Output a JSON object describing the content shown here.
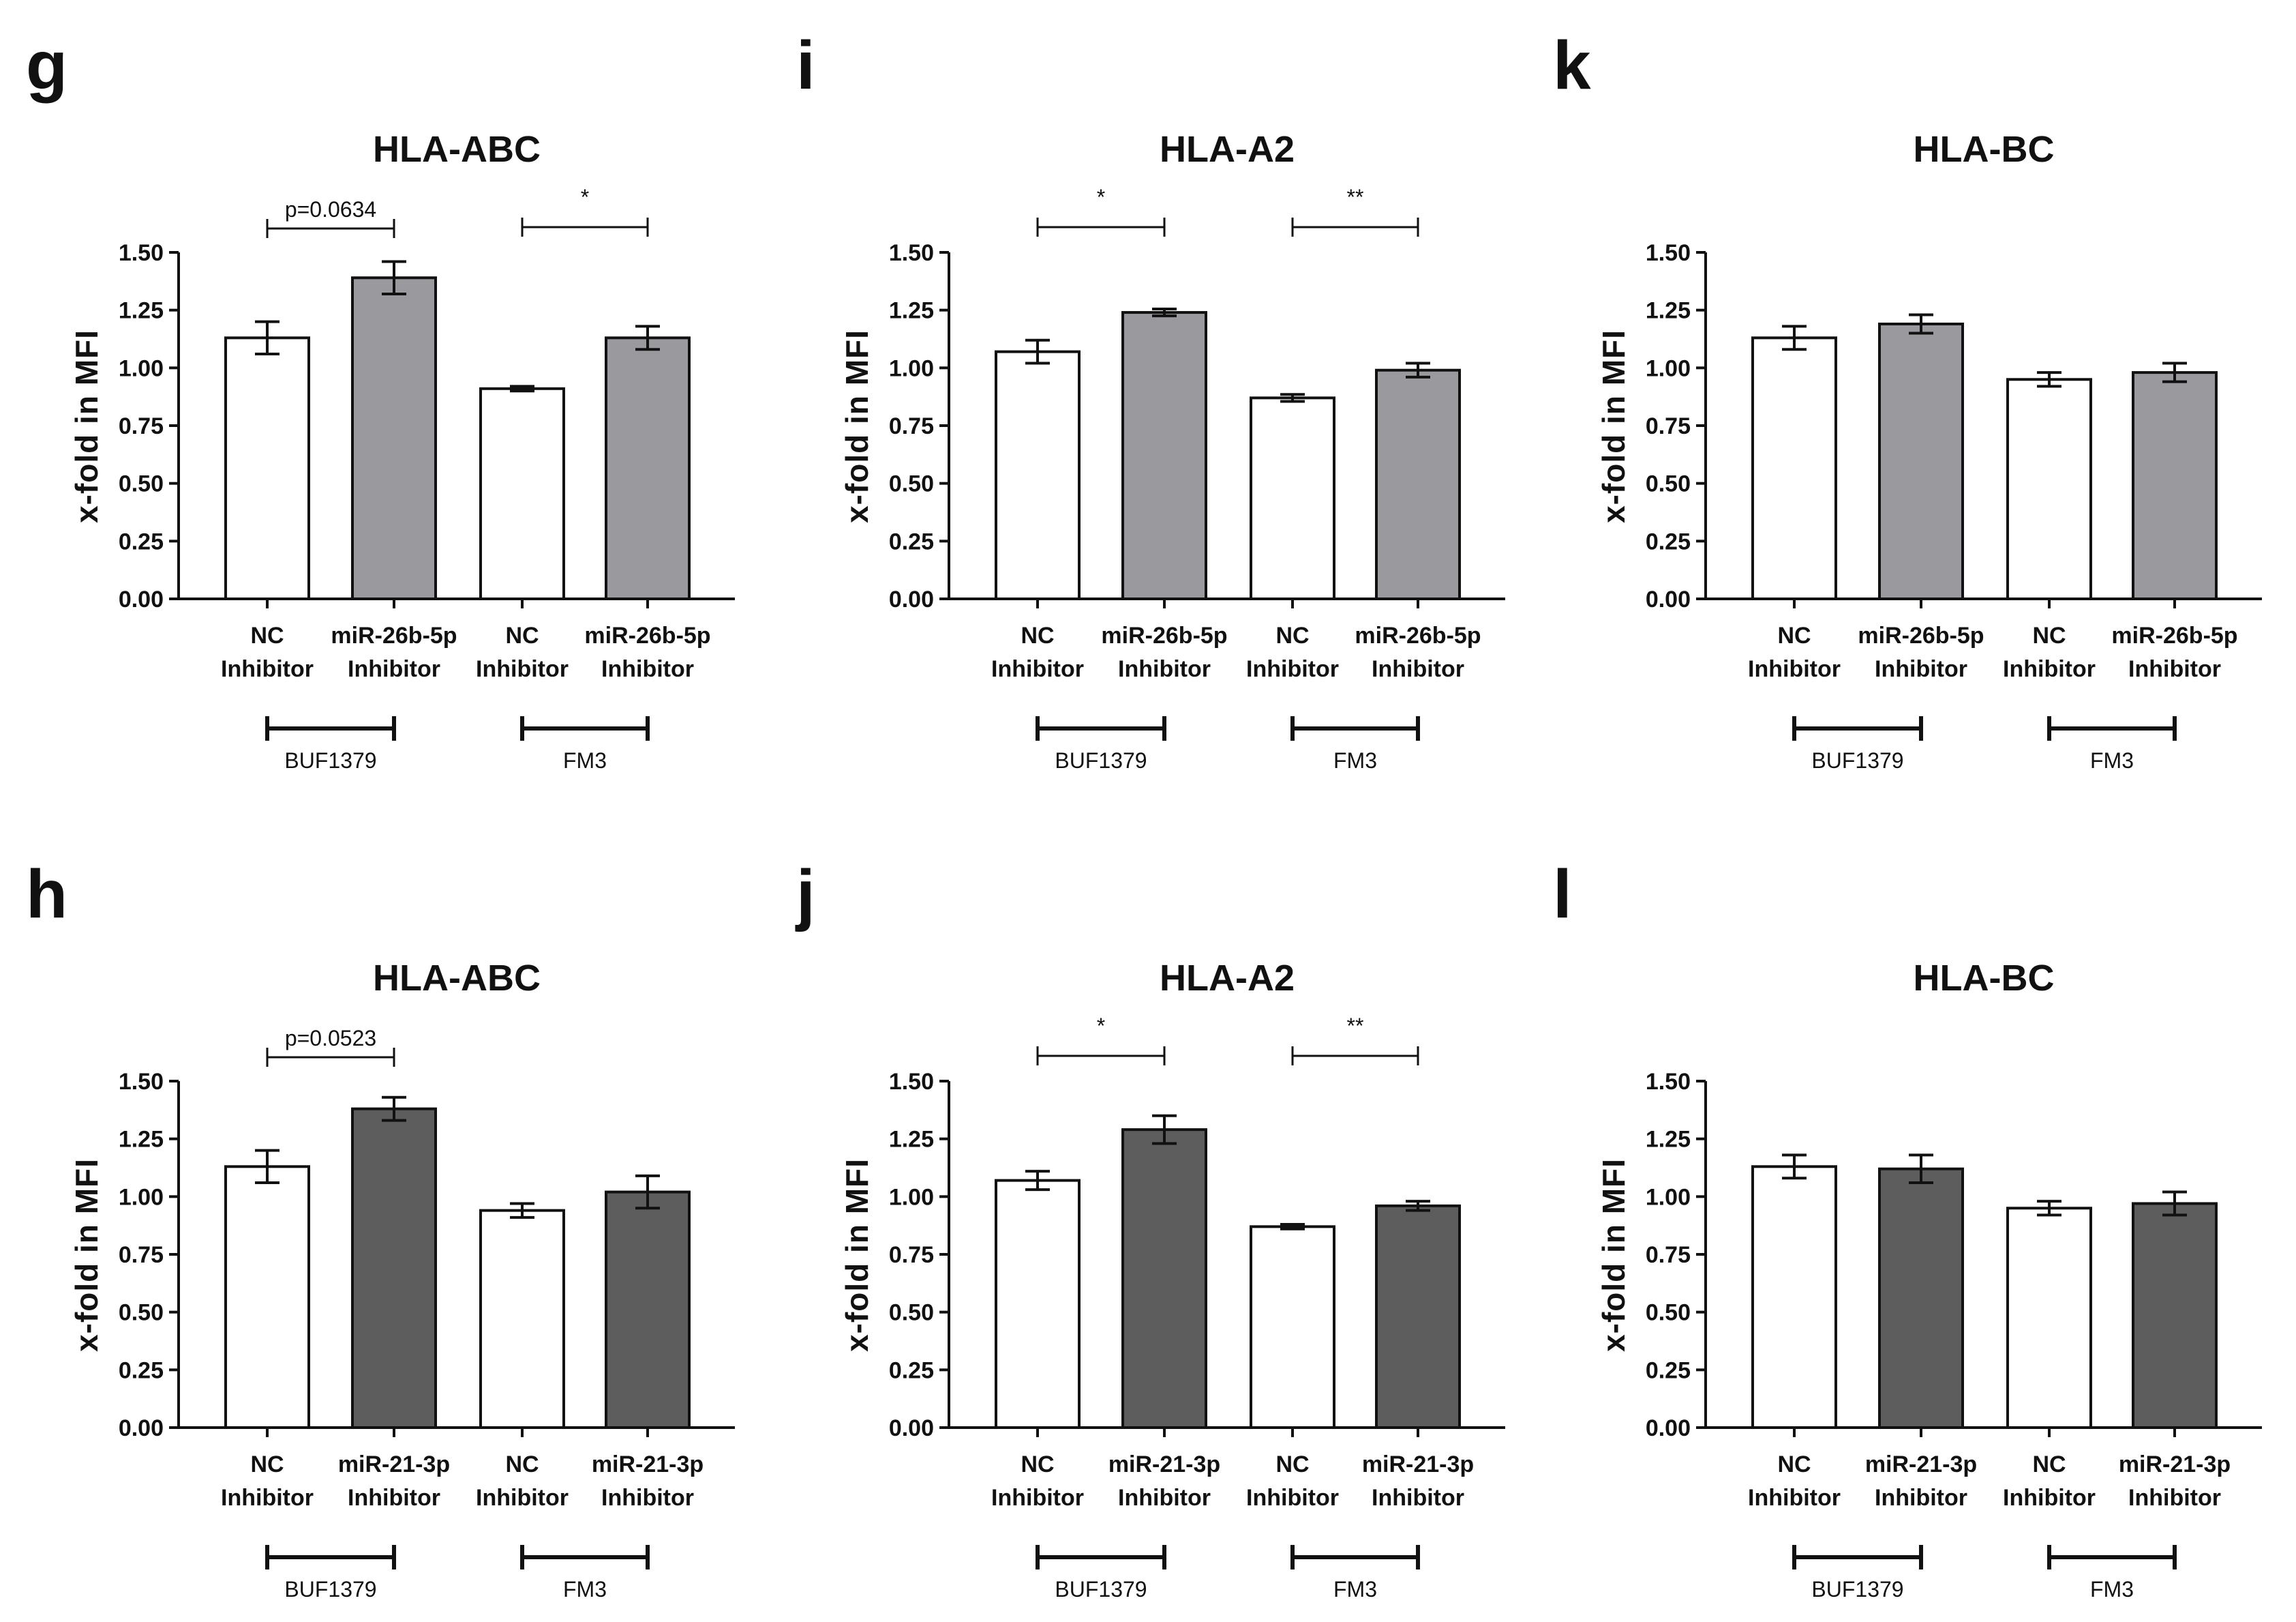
{
  "figure": {
    "colors": {
      "nc": "#ffffff",
      "mir26b": "#9a9a9e",
      "mir21": "#5d5d5d",
      "stroke": "#111111"
    }
  },
  "chart_data": [
    {
      "panel": "g",
      "type": "bar",
      "title": "HLA-ABC",
      "ylabel": "x-fold in MFI",
      "ylim": [
        0,
        1.5
      ],
      "yticks": [
        "0.00",
        "0.25",
        "0.50",
        "0.75",
        "1.00",
        "1.25",
        "1.50"
      ],
      "categories": [
        [
          "NC",
          "Inhibitor"
        ],
        [
          "miR-26b-5p",
          "Inhibitor"
        ],
        [
          "NC",
          "Inhibitor"
        ],
        [
          "miR-26b-5p",
          "Inhibitor"
        ]
      ],
      "values": [
        1.13,
        1.39,
        0.91,
        1.13
      ],
      "errors": [
        0.07,
        0.07,
        0.01,
        0.05
      ],
      "fills": [
        "nc",
        "mir26b",
        "nc",
        "mir26b"
      ],
      "groups": [
        "BUF1379",
        "FM3"
      ],
      "annotations": [
        {
          "pair": [
            0,
            1
          ],
          "text": "p=0.0634"
        },
        {
          "pair": [
            2,
            3
          ],
          "text": "*"
        }
      ]
    },
    {
      "panel": "i",
      "type": "bar",
      "title": "HLA-A2",
      "ylabel": "x-fold in MFI",
      "ylim": [
        0,
        1.5
      ],
      "yticks": [
        "0.00",
        "0.25",
        "0.50",
        "0.75",
        "1.00",
        "1.25",
        "1.50"
      ],
      "categories": [
        [
          "NC",
          "Inhibitor"
        ],
        [
          "miR-26b-5p",
          "Inhibitor"
        ],
        [
          "NC",
          "Inhibitor"
        ],
        [
          "miR-26b-5p",
          "Inhibitor"
        ]
      ],
      "values": [
        1.07,
        1.24,
        0.87,
        0.99
      ],
      "errors": [
        0.05,
        0.015,
        0.015,
        0.03
      ],
      "fills": [
        "nc",
        "mir26b",
        "nc",
        "mir26b"
      ],
      "groups": [
        "BUF1379",
        "FM3"
      ],
      "annotations": [
        {
          "pair": [
            0,
            1
          ],
          "text": "*"
        },
        {
          "pair": [
            2,
            3
          ],
          "text": "**"
        }
      ]
    },
    {
      "panel": "k",
      "type": "bar",
      "title": "HLA-BC",
      "ylabel": "x-fold in MFI",
      "ylim": [
        0,
        1.5
      ],
      "yticks": [
        "0.00",
        "0.25",
        "0.50",
        "0.75",
        "1.00",
        "1.25",
        "1.50"
      ],
      "categories": [
        [
          "NC",
          "Inhibitor"
        ],
        [
          "miR-26b-5p",
          "Inhibitor"
        ],
        [
          "NC",
          "Inhibitor"
        ],
        [
          "miR-26b-5p",
          "Inhibitor"
        ]
      ],
      "values": [
        1.13,
        1.19,
        0.95,
        0.98
      ],
      "errors": [
        0.05,
        0.04,
        0.03,
        0.04
      ],
      "fills": [
        "nc",
        "mir26b",
        "nc",
        "mir26b"
      ],
      "groups": [
        "BUF1379",
        "FM3"
      ],
      "annotations": []
    },
    {
      "panel": "h",
      "type": "bar",
      "title": "HLA-ABC",
      "ylabel": "x-fold in MFI",
      "ylim": [
        0,
        1.5
      ],
      "yticks": [
        "0.00",
        "0.25",
        "0.50",
        "0.75",
        "1.00",
        "1.25",
        "1.50"
      ],
      "categories": [
        [
          "NC",
          "Inhibitor"
        ],
        [
          "miR-21-3p",
          "Inhibitor"
        ],
        [
          "NC",
          "Inhibitor"
        ],
        [
          "miR-21-3p",
          "Inhibitor"
        ]
      ],
      "values": [
        1.13,
        1.38,
        0.94,
        1.02
      ],
      "errors": [
        0.07,
        0.05,
        0.03,
        0.07
      ],
      "fills": [
        "nc",
        "mir21",
        "nc",
        "mir21"
      ],
      "groups": [
        "BUF1379",
        "FM3"
      ],
      "annotations": [
        {
          "pair": [
            0,
            1
          ],
          "text": "p=0.0523"
        }
      ]
    },
    {
      "panel": "j",
      "type": "bar",
      "title": "HLA-A2",
      "ylabel": "x-fold in MFI",
      "ylim": [
        0,
        1.5
      ],
      "yticks": [
        "0.00",
        "0.25",
        "0.50",
        "0.75",
        "1.00",
        "1.25",
        "1.50"
      ],
      "categories": [
        [
          "NC",
          "Inhibitor"
        ],
        [
          "miR-21-3p",
          "Inhibitor"
        ],
        [
          "NC",
          "Inhibitor"
        ],
        [
          "miR-21-3p",
          "Inhibitor"
        ]
      ],
      "values": [
        1.07,
        1.29,
        0.87,
        0.96
      ],
      "errors": [
        0.04,
        0.06,
        0.01,
        0.02
      ],
      "fills": [
        "nc",
        "mir21",
        "nc",
        "mir21"
      ],
      "groups": [
        "BUF1379",
        "FM3"
      ],
      "annotations": [
        {
          "pair": [
            0,
            1
          ],
          "text": "*"
        },
        {
          "pair": [
            2,
            3
          ],
          "text": "**"
        }
      ]
    },
    {
      "panel": "l",
      "type": "bar",
      "title": "HLA-BC",
      "ylabel": "x-fold in MFI",
      "ylim": [
        0,
        1.5
      ],
      "yticks": [
        "0.00",
        "0.25",
        "0.50",
        "0.75",
        "1.00",
        "1.25",
        "1.50"
      ],
      "categories": [
        [
          "NC",
          "Inhibitor"
        ],
        [
          "miR-21-3p",
          "Inhibitor"
        ],
        [
          "NC",
          "Inhibitor"
        ],
        [
          "miR-21-3p",
          "Inhibitor"
        ]
      ],
      "values": [
        1.13,
        1.12,
        0.95,
        0.97
      ],
      "errors": [
        0.05,
        0.06,
        0.03,
        0.05
      ],
      "fills": [
        "nc",
        "mir21",
        "nc",
        "mir21"
      ],
      "groups": [
        "BUF1379",
        "FM3"
      ],
      "annotations": []
    }
  ]
}
